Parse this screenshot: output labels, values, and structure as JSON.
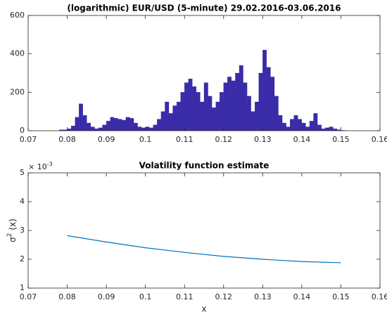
{
  "chart_data": [
    {
      "type": "histogram",
      "title": "(logarithmic) EUR/USD (5-minute) 29.02.2016-03.06.2016",
      "color": "#3a2ba8",
      "bins": [
        0.078,
        0.079,
        0.08,
        0.081,
        0.082,
        0.083,
        0.084,
        0.085,
        0.086,
        0.087,
        0.088,
        0.089,
        0.09,
        0.091,
        0.092,
        0.093,
        0.094,
        0.095,
        0.096,
        0.097,
        0.098,
        0.099,
        0.1,
        0.101,
        0.102,
        0.103,
        0.104,
        0.105,
        0.106,
        0.107,
        0.108,
        0.109,
        0.11,
        0.111,
        0.112,
        0.113,
        0.114,
        0.115,
        0.116,
        0.117,
        0.118,
        0.119,
        0.12,
        0.121,
        0.122,
        0.123,
        0.124,
        0.125,
        0.126,
        0.127,
        0.128,
        0.129,
        0.13,
        0.131,
        0.132,
        0.133,
        0.134,
        0.135,
        0.136,
        0.137,
        0.138,
        0.139,
        0.14,
        0.141,
        0.142,
        0.143,
        0.144,
        0.145,
        0.146,
        0.147,
        0.148,
        0.149,
        0.15,
        0.151
      ],
      "values": [
        5,
        5,
        10,
        25,
        70,
        140,
        80,
        40,
        20,
        10,
        15,
        30,
        50,
        70,
        65,
        60,
        55,
        70,
        65,
        40,
        20,
        15,
        20,
        15,
        30,
        60,
        100,
        150,
        90,
        130,
        150,
        200,
        250,
        270,
        230,
        200,
        150,
        250,
        180,
        120,
        150,
        200,
        250,
        280,
        260,
        300,
        340,
        250,
        180,
        100,
        150,
        300,
        420,
        330,
        280,
        180,
        80,
        40,
        20,
        60,
        80,
        60,
        40,
        20,
        50,
        90,
        30,
        10,
        15,
        20,
        10,
        5,
        2
      ],
      "xlim": [
        0.07,
        0.16
      ],
      "xticks": [
        0.07,
        0.08,
        0.09,
        0.1,
        0.11,
        0.12,
        0.13,
        0.14,
        0.15,
        0.16
      ],
      "ylim": [
        0,
        600
      ],
      "yticks": [
        0,
        200,
        400,
        600
      ]
    },
    {
      "type": "line",
      "title": "Volatility function estimate",
      "xlabel": "x",
      "ylabel": "σ",
      "ylabel_sup": "2",
      "ylabel_tail": " (x)",
      "y_scale_base": "× 10",
      "y_scale_exponent": "-3",
      "color": "#0072bd",
      "x": [
        0.08,
        0.09,
        0.1,
        0.11,
        0.12,
        0.13,
        0.14,
        0.15
      ],
      "values": [
        2.82,
        2.6,
        2.4,
        2.24,
        2.1,
        2.0,
        1.92,
        1.88
      ],
      "xlim": [
        0.07,
        0.16
      ],
      "xticks": [
        0.07,
        0.08,
        0.09,
        0.1,
        0.11,
        0.12,
        0.13,
        0.14,
        0.15,
        0.16
      ],
      "ylim": [
        1,
        5
      ],
      "yticks": [
        1,
        2,
        3,
        4,
        5
      ]
    }
  ]
}
